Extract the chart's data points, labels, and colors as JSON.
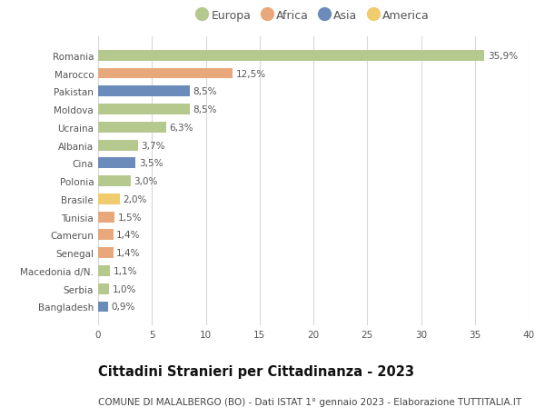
{
  "categories": [
    "Romania",
    "Marocco",
    "Pakistan",
    "Moldova",
    "Ucraina",
    "Albania",
    "Cina",
    "Polonia",
    "Brasile",
    "Tunisia",
    "Camerun",
    "Senegal",
    "Macedonia d/N.",
    "Serbia",
    "Bangladesh"
  ],
  "values": [
    35.9,
    12.5,
    8.5,
    8.5,
    6.3,
    3.7,
    3.5,
    3.0,
    2.0,
    1.5,
    1.4,
    1.4,
    1.1,
    1.0,
    0.9
  ],
  "labels": [
    "35,9%",
    "12,5%",
    "8,5%",
    "8,5%",
    "6,3%",
    "3,7%",
    "3,5%",
    "3,0%",
    "2,0%",
    "1,5%",
    "1,4%",
    "1,4%",
    "1,1%",
    "1,0%",
    "0,9%"
  ],
  "continents": [
    "Europa",
    "Africa",
    "Asia",
    "Europa",
    "Europa",
    "Europa",
    "Asia",
    "Europa",
    "America",
    "Africa",
    "Africa",
    "Africa",
    "Europa",
    "Europa",
    "Asia"
  ],
  "continent_colors": {
    "Europa": "#b5c98e",
    "Africa": "#e8a87c",
    "Asia": "#6b8cba",
    "America": "#f0cc6e"
  },
  "legend_order": [
    "Europa",
    "Africa",
    "Asia",
    "America"
  ],
  "xlim": [
    0,
    40
  ],
  "xticks": [
    0,
    5,
    10,
    15,
    20,
    25,
    30,
    35,
    40
  ],
  "title": "Cittadini Stranieri per Cittadinanza - 2023",
  "subtitle": "COMUNE DI MALALBERGO (BO) - Dati ISTAT 1° gennaio 2023 - Elaborazione TUTTITALIA.IT",
  "background_color": "#ffffff",
  "grid_color": "#d8d8d8",
  "bar_height": 0.6,
  "title_fontsize": 10.5,
  "subtitle_fontsize": 7.5,
  "label_fontsize": 7.5,
  "tick_fontsize": 7.5,
  "legend_fontsize": 9
}
